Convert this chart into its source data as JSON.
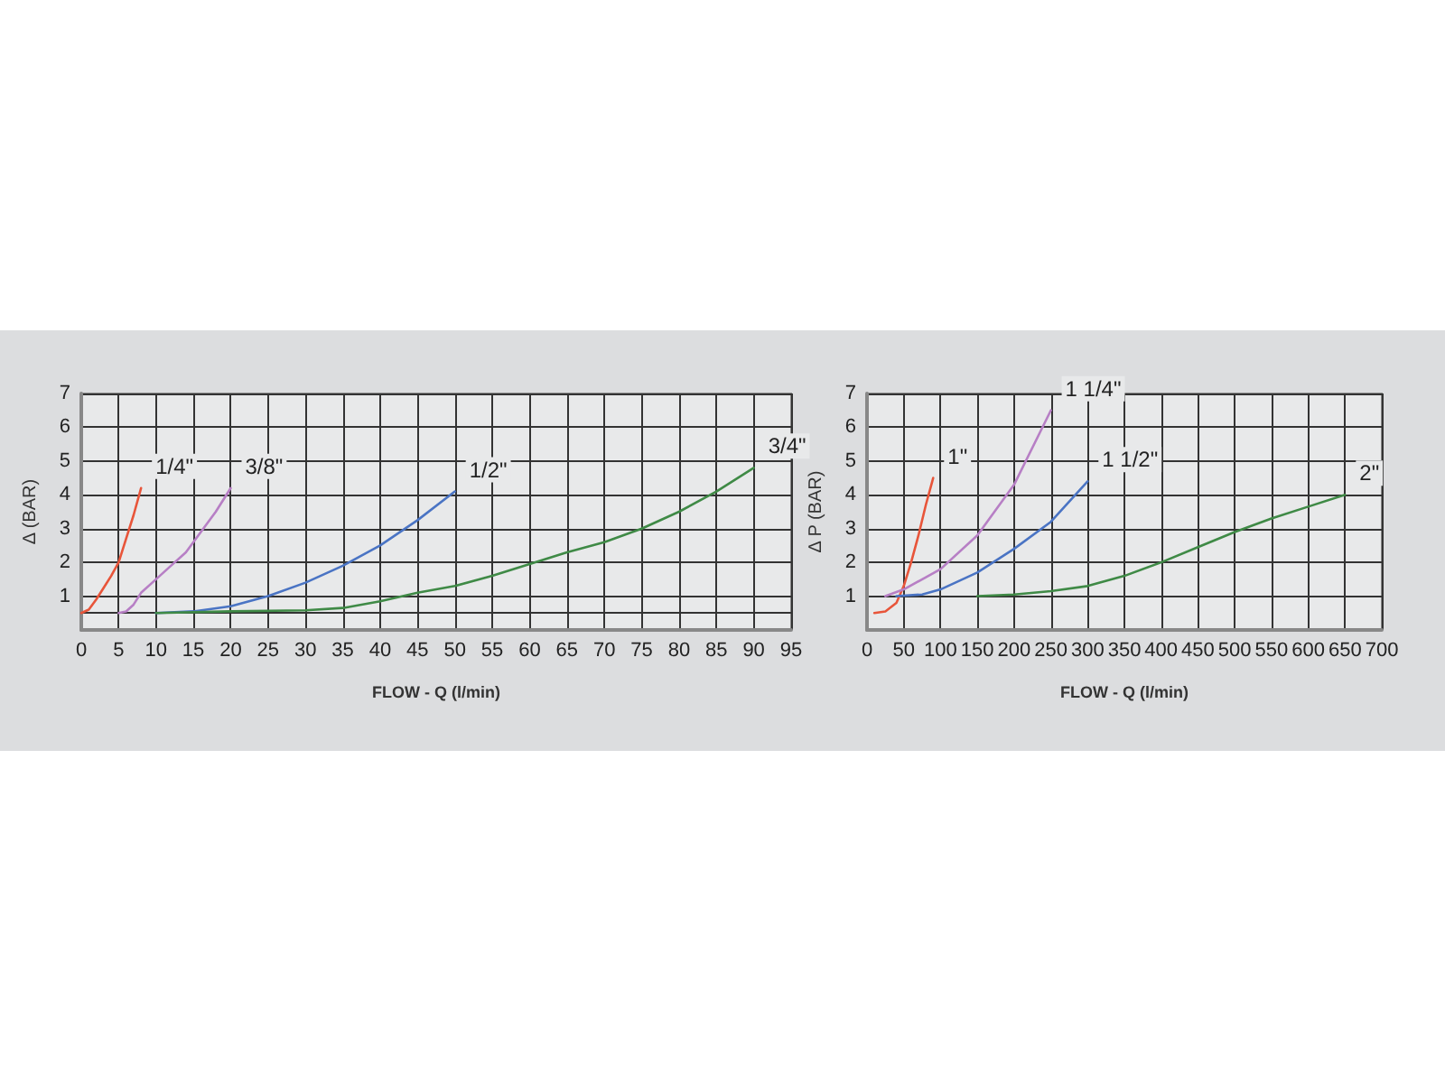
{
  "chart_data": [
    {
      "type": "line",
      "xlabel": "FLOW - Q (l/min)",
      "ylabel": "Δ (BAR)",
      "xlim": [
        0,
        95
      ],
      "ylim": [
        0,
        7
      ],
      "xticks": [
        0,
        5,
        10,
        15,
        20,
        25,
        30,
        35,
        40,
        45,
        50,
        55,
        60,
        65,
        70,
        75,
        80,
        85,
        90,
        95
      ],
      "yticks": [
        {
          "value": 0.5,
          "label": null
        },
        1,
        2,
        3,
        4,
        5,
        6,
        7
      ],
      "grid": true,
      "marker": "none",
      "series": [
        {
          "name": "1/4\"",
          "color": "#e8553a",
          "x": [
            0,
            1,
            2,
            3,
            4,
            5,
            6,
            7,
            8
          ],
          "values": [
            0.5,
            0.6,
            0.9,
            1.25,
            1.6,
            2.0,
            2.7,
            3.4,
            4.2
          ]
        },
        {
          "name": "3/8\"",
          "color": "#b77fc5",
          "x": [
            5,
            6,
            7,
            8,
            10,
            12,
            14,
            16,
            18,
            20
          ],
          "values": [
            0.5,
            0.55,
            0.75,
            1.1,
            1.5,
            1.9,
            2.3,
            2.9,
            3.5,
            4.2
          ]
        },
        {
          "name": "1/2\"",
          "color": "#4a74c4",
          "x": [
            10,
            15,
            20,
            25,
            30,
            35,
            40,
            45,
            50
          ],
          "values": [
            0.5,
            0.55,
            0.7,
            1.0,
            1.4,
            1.9,
            2.5,
            3.25,
            4.1
          ]
        },
        {
          "name": "3/4\"",
          "color": "#3f8a46",
          "x": [
            10,
            20,
            30,
            35,
            40,
            45,
            50,
            55,
            60,
            65,
            70,
            75,
            80,
            85,
            90
          ],
          "values": [
            0.5,
            0.55,
            0.58,
            0.65,
            0.85,
            1.1,
            1.3,
            1.6,
            1.95,
            2.3,
            2.6,
            3.0,
            3.5,
            4.1,
            4.8
          ]
        }
      ]
    },
    {
      "type": "line",
      "xlabel": "FLOW - Q (l/min)",
      "ylabel": "Δ P (BAR)",
      "xlim": [
        0,
        700
      ],
      "ylim": [
        0,
        7
      ],
      "xticks": [
        0,
        50,
        100,
        150,
        200,
        250,
        300,
        350,
        400,
        450,
        500,
        550,
        600,
        650,
        700
      ],
      "yticks": [
        1,
        2,
        3,
        4,
        5,
        6,
        7
      ],
      "grid": true,
      "marker": "none",
      "series": [
        {
          "name": "1\"",
          "color": "#e8553a",
          "x": [
            10,
            25,
            40,
            50,
            60,
            70,
            80,
            90
          ],
          "values": [
            0.5,
            0.55,
            0.8,
            1.3,
            2.0,
            2.8,
            3.7,
            4.5
          ]
        },
        {
          "name": "1 1/4\"",
          "color": "#b77fc5",
          "x": [
            25,
            50,
            100,
            150,
            200,
            250
          ],
          "values": [
            1.0,
            1.2,
            1.8,
            2.8,
            4.3,
            6.5
          ]
        },
        {
          "name": "1 1/2\"",
          "color": "#4a74c4",
          "x": [
            40,
            75,
            100,
            150,
            200,
            250,
            300
          ],
          "values": [
            1.0,
            1.05,
            1.2,
            1.7,
            2.4,
            3.2,
            4.4
          ]
        },
        {
          "name": "2\"",
          "color": "#3f8a46",
          "x": [
            150,
            200,
            250,
            300,
            350,
            400,
            450,
            500,
            550,
            600,
            650
          ],
          "values": [
            1.0,
            1.05,
            1.15,
            1.3,
            1.6,
            2.0,
            2.45,
            2.9,
            3.3,
            3.65,
            4.0
          ]
        }
      ]
    }
  ]
}
